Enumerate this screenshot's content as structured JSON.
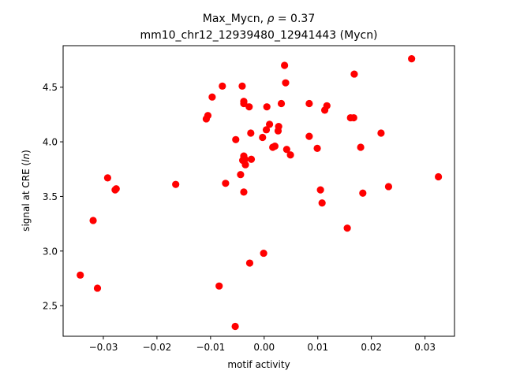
{
  "chart_data": {
    "type": "scatter",
    "title_main": "Max_Mycn, ",
    "title_rho_symbol": "ρ",
    "title_rho_value": " = 0.37",
    "subtitle": "mm10_chr12_12939480_12941443 (Mycn)",
    "xlabel": "motif activity",
    "ylabel_prefix": "signal at CRE (",
    "ylabel_italic": "ln",
    "ylabel_suffix": ")",
    "xlim": [
      -0.0375,
      0.0355
    ],
    "ylim": [
      2.22,
      4.88
    ],
    "x_ticks": [
      -0.03,
      -0.02,
      -0.01,
      0.0,
      0.01,
      0.02,
      0.03
    ],
    "x_tick_labels": [
      "−0.03",
      "−0.02",
      "−0.01",
      "0.00",
      "0.01",
      "0.02",
      "0.03"
    ],
    "y_ticks": [
      2.5,
      3.0,
      3.5,
      4.0,
      4.5
    ],
    "y_tick_labels": [
      "2.5",
      "3.0",
      "3.5",
      "4.0",
      "4.5"
    ],
    "marker_color": "#ff0000",
    "grid": false,
    "points": [
      {
        "x": -0.0343,
        "y": 2.78
      },
      {
        "x": -0.0319,
        "y": 3.28
      },
      {
        "x": -0.0311,
        "y": 2.66
      },
      {
        "x": -0.0292,
        "y": 3.67
      },
      {
        "x": -0.0278,
        "y": 3.56
      },
      {
        "x": -0.0276,
        "y": 3.57
      },
      {
        "x": -0.0165,
        "y": 3.61
      },
      {
        "x": -0.0108,
        "y": 4.21
      },
      {
        "x": -0.0105,
        "y": 4.24
      },
      {
        "x": -0.0097,
        "y": 4.41
      },
      {
        "x": -0.0084,
        "y": 2.68
      },
      {
        "x": -0.0078,
        "y": 4.51
      },
      {
        "x": -0.0072,
        "y": 3.62
      },
      {
        "x": -0.0054,
        "y": 2.31
      },
      {
        "x": -0.0053,
        "y": 4.02
      },
      {
        "x": -0.0044,
        "y": 3.7
      },
      {
        "x": -0.0041,
        "y": 4.51
      },
      {
        "x": -0.004,
        "y": 3.83
      },
      {
        "x": -0.0038,
        "y": 4.37
      },
      {
        "x": -0.0038,
        "y": 4.35
      },
      {
        "x": -0.0038,
        "y": 3.87
      },
      {
        "x": -0.0038,
        "y": 3.54
      },
      {
        "x": -0.0036,
        "y": 3.84
      },
      {
        "x": -0.0035,
        "y": 3.79
      },
      {
        "x": -0.0028,
        "y": 4.32
      },
      {
        "x": -0.0027,
        "y": 2.89
      },
      {
        "x": -0.0025,
        "y": 4.08
      },
      {
        "x": -0.0024,
        "y": 3.84
      },
      {
        "x": -0.0003,
        "y": 4.04
      },
      {
        "x": -0.0001,
        "y": 2.98
      },
      {
        "x": 0.0004,
        "y": 4.11
      },
      {
        "x": 0.0005,
        "y": 4.32
      },
      {
        "x": 0.001,
        "y": 4.16
      },
      {
        "x": 0.0016,
        "y": 3.95
      },
      {
        "x": 0.002,
        "y": 3.96
      },
      {
        "x": 0.0026,
        "y": 4.1
      },
      {
        "x": 0.0027,
        "y": 4.14
      },
      {
        "x": 0.0032,
        "y": 4.35
      },
      {
        "x": 0.0038,
        "y": 4.7
      },
      {
        "x": 0.004,
        "y": 4.54
      },
      {
        "x": 0.0042,
        "y": 3.93
      },
      {
        "x": 0.0049,
        "y": 3.88
      },
      {
        "x": 0.0084,
        "y": 4.35
      },
      {
        "x": 0.0084,
        "y": 4.05
      },
      {
        "x": 0.0099,
        "y": 3.94
      },
      {
        "x": 0.0105,
        "y": 3.56
      },
      {
        "x": 0.0108,
        "y": 3.44
      },
      {
        "x": 0.0113,
        "y": 4.29
      },
      {
        "x": 0.0117,
        "y": 4.33
      },
      {
        "x": 0.0155,
        "y": 3.21
      },
      {
        "x": 0.0161,
        "y": 4.22
      },
      {
        "x": 0.0167,
        "y": 4.22
      },
      {
        "x": 0.0168,
        "y": 4.62
      },
      {
        "x": 0.018,
        "y": 3.95
      },
      {
        "x": 0.0184,
        "y": 3.53
      },
      {
        "x": 0.0218,
        "y": 4.08
      },
      {
        "x": 0.0232,
        "y": 3.59
      },
      {
        "x": 0.0275,
        "y": 4.76
      },
      {
        "x": 0.0325,
        "y": 3.68
      }
    ]
  }
}
